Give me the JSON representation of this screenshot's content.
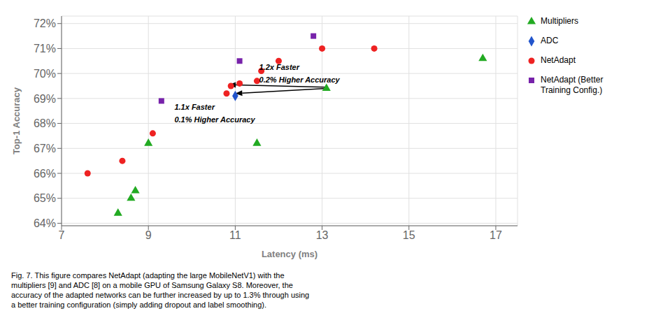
{
  "chart_data": {
    "type": "scatter",
    "series": [
      {
        "name": "Multipliers",
        "color": "#22aa22",
        "marker": "triangle",
        "x": [
          8.3,
          8.6,
          8.7,
          9.0,
          11.5,
          13.1,
          16.7
        ],
        "values": [
          64.4,
          65.0,
          65.3,
          67.2,
          67.2,
          69.4,
          70.6
        ]
      },
      {
        "name": "ADC",
        "color": "#2255cc",
        "marker": "diamond",
        "x": [
          11.0
        ],
        "values": [
          69.1
        ]
      },
      {
        "name": "NetAdapt",
        "color": "#ee2222",
        "marker": "circle",
        "x": [
          7.6,
          8.4,
          9.1,
          10.8,
          10.9,
          11.1,
          11.5,
          11.6,
          12.0,
          13.0,
          14.2
        ],
        "values": [
          66.0,
          66.5,
          67.6,
          69.2,
          69.5,
          69.6,
          69.7,
          70.1,
          70.5,
          71.0,
          71.0
        ]
      },
      {
        "name": "NetAdapt (Better\nTraining Config.)",
        "color": "#7722aa",
        "marker": "square",
        "x": [
          9.3,
          11.1,
          12.8
        ],
        "values": [
          68.9,
          70.5,
          71.5
        ]
      }
    ],
    "xlabel": "Latency (ms)",
    "ylabel": "Top-1 Accuracy",
    "xlim": [
      7,
      17.5
    ],
    "ylim": [
      63.9,
      72.3
    ],
    "xticks": [
      7,
      9,
      11,
      13,
      15,
      17
    ],
    "yticks": [
      {
        "value": 64,
        "label": "64%"
      },
      {
        "value": 65,
        "label": "65%"
      },
      {
        "value": 66,
        "label": "66%"
      },
      {
        "value": 67,
        "label": "67%"
      },
      {
        "value": 68,
        "label": "68%"
      },
      {
        "value": 69,
        "label": "69%"
      },
      {
        "value": 70,
        "label": "70%"
      },
      {
        "value": 71,
        "label": "71%"
      },
      {
        "value": 72,
        "label": "72%"
      }
    ],
    "grid": true,
    "legend": "right",
    "arrows": [
      {
        "x_start": 13.1,
        "y_start": 69.4,
        "x_end": 11.0,
        "y_end": 69.2
      },
      {
        "x_start": 13.1,
        "y_start": 69.45,
        "x_end": 10.85,
        "y_end": 69.55
      }
    ],
    "annotations": [
      {
        "text": "1.1x Faster",
        "x": 9.6,
        "y": 68.55
      },
      {
        "text": "0.1% Higher Accuracy",
        "x": 9.6,
        "y": 68.05
      },
      {
        "text": "1.2x Faster",
        "x": 11.55,
        "y": 70.15
      },
      {
        "text": "0.2% Higher Accuracy",
        "x": 11.55,
        "y": 69.65
      }
    ],
    "caption": "Fig. 7. This figure compares NetAdapt (adapting the large MobileNetV1) with the\nmultipliers [9] and ADC [8] on a mobile GPU of Samsung Galaxy S8. Moreover, the\naccuracy of the adapted networks can be further increased by up to 1.3% through using\na better training configuration (simply adding dropout and label smoothing)."
  }
}
